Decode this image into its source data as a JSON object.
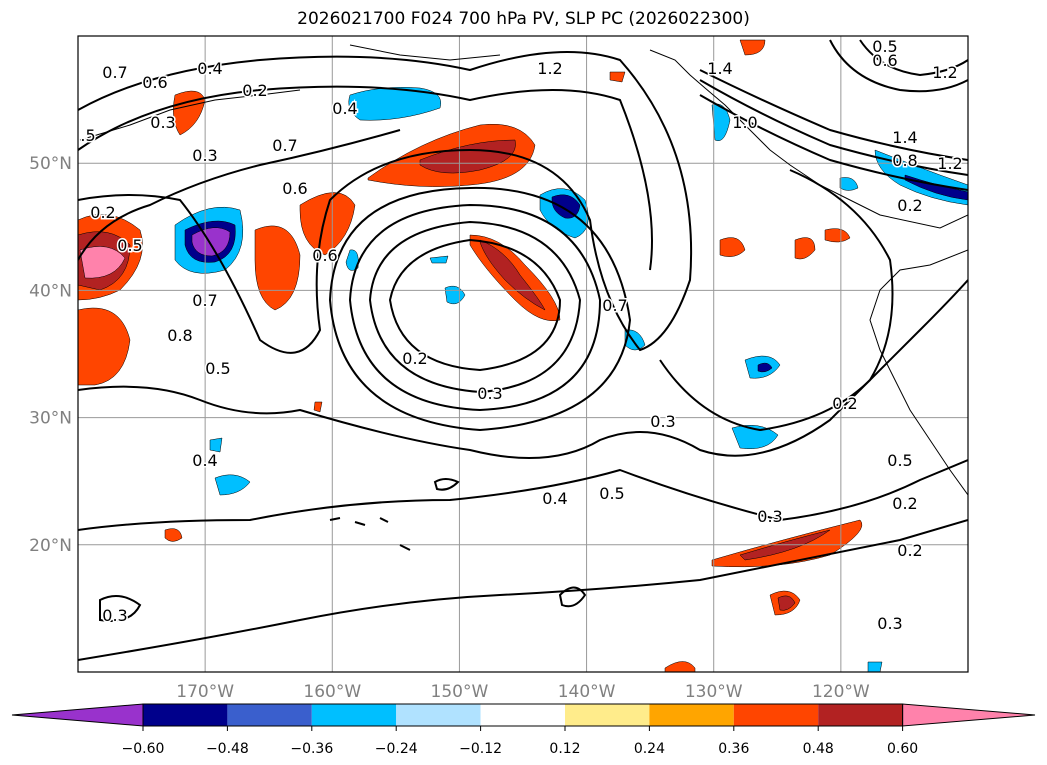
{
  "title": "2026021700 F024 700 hPa PV, SLP PC (2026022300)",
  "map": {
    "lon_ticks": [
      "170°W",
      "160°W",
      "150°W",
      "140°W",
      "130°W",
      "120°W"
    ],
    "lat_ticks": [
      "50°N",
      "40°N",
      "30°N",
      "20°N"
    ],
    "extent": {
      "lon": [
        -180,
        -110
      ],
      "lat": [
        10,
        60
      ]
    },
    "contour_labels": [
      "0.7",
      "0.6",
      "0.4",
      "0.2",
      "0.3",
      ".5",
      "0.3",
      "0.7",
      "0.4",
      "0.6",
      "0.2",
      "0.5",
      "0.6",
      "0.7",
      "0.8",
      "0.5",
      "0.2",
      "0.3",
      "0.4",
      "1.2",
      "1.4",
      "1.0",
      "0.7",
      "0.3",
      "0.4",
      "0.5",
      "0.3",
      "0.2",
      "0.5",
      "0.2",
      "0.2",
      "0.3",
      "0.3",
      "0.5",
      "0.6",
      "1.2",
      "1.4",
      "0.8",
      "1.2",
      "0.2"
    ]
  },
  "colorbar": {
    "ticks": [
      "−0.60",
      "−0.48",
      "−0.36",
      "−0.24",
      "−0.12",
      "0.12",
      "0.24",
      "0.36",
      "0.48",
      "0.60"
    ],
    "colors": [
      "#9932cc",
      "#00008b",
      "#3a5fcd",
      "#00bfff",
      "#b0e2ff",
      "#ffffff",
      "#ffec8b",
      "#ffa500",
      "#ff4500",
      "#b22222",
      "#ff82ab"
    ]
  }
}
